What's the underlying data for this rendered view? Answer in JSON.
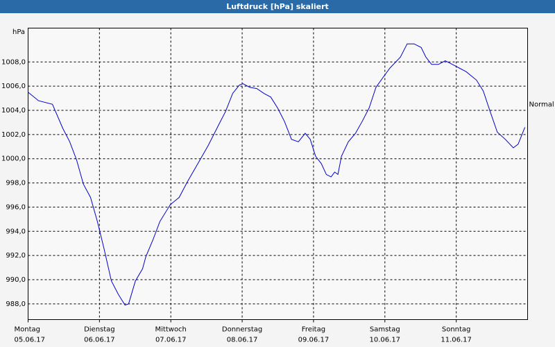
{
  "chart_data": {
    "type": "line",
    "title": "Luftdruck [hPa] skaliert",
    "y_label": "hPa",
    "x": [
      0,
      3.5,
      8.2,
      11.7,
      14,
      16.3,
      18.6,
      21,
      23.3,
      25.6,
      28,
      30.3,
      32.6,
      33.8,
      36.1,
      38.5,
      39.6,
      42,
      44.3,
      47.8,
      50.8,
      53.6,
      57.1,
      60.6,
      64.1,
      66.4,
      68.8,
      71.1,
      72.3,
      74.6,
      76.9,
      79.3,
      81.6,
      83.9,
      86.2,
      88.6,
      90.9,
      93.2,
      94.9,
      96.7,
      98.6,
      100.3,
      101.9,
      103.1,
      104.2,
      105.4,
      107.7,
      110.1,
      112.4,
      114.7,
      117,
      119.3,
      121.7,
      125.2,
      127.5,
      129.8,
      132.2,
      133.8,
      135.7,
      138,
      140.3,
      142.7,
      145,
      147.3,
      150.8,
      153.1,
      155.4,
      157.8,
      160.5,
      163.2,
      164.8,
      167.1
    ],
    "series": [
      {
        "name": "Luftdruck",
        "color": "#0000cc",
        "values": [
          1005.5,
          1004.8,
          1004.5,
          1002.5,
          1001.4,
          999.9,
          997.9,
          996.8,
          994.8,
          992.5,
          989.9,
          988.8,
          987.9,
          988.0,
          989.9,
          990.9,
          991.9,
          993.3,
          994.8,
          996.2,
          996.8,
          998.1,
          999.6,
          1001.1,
          1002.8,
          1003.9,
          1005.4,
          1006.1,
          1006.2,
          1005.9,
          1005.8,
          1005.4,
          1005.1,
          1004.2,
          1003.1,
          1001.6,
          1001.4,
          1002.1,
          1001.6,
          1000.2,
          999.6,
          998.7,
          998.5,
          998.9,
          998.7,
          1000.2,
          1001.4,
          1002.1,
          1003.1,
          1004.2,
          1005.9,
          1006.7,
          1007.5,
          1008.4,
          1009.5,
          1009.5,
          1009.2,
          1008.4,
          1007.8,
          1007.8,
          1008.1,
          1007.8,
          1007.5,
          1007.2,
          1006.5,
          1005.6,
          1003.9,
          1002.2,
          1001.6,
          1000.9,
          1001.2,
          1002.6
        ]
      }
    ],
    "xlim": [
      0,
      168
    ],
    "xticks": [
      {
        "value": 0,
        "label": "Montag"
      },
      {
        "value": 24,
        "label": "Dienstag"
      },
      {
        "value": 48,
        "label": "Mittwoch"
      },
      {
        "value": 72,
        "label": "Donnerstag"
      },
      {
        "value": 96,
        "label": "Freitag"
      },
      {
        "value": 120,
        "label": "Samstag"
      },
      {
        "value": 144,
        "label": "Sonntag"
      }
    ],
    "xtick_dates": [
      "05.06.17",
      "06.06.17",
      "07.06.17",
      "08.06.17",
      "09.06.17",
      "10.06.17",
      "11.06.17"
    ],
    "ylim": [
      986.7,
      1010.8
    ],
    "yticks": [
      {
        "value": 988,
        "label": "988,0"
      },
      {
        "value": 990,
        "label": "990,0"
      },
      {
        "value": 992,
        "label": "992,0"
      },
      {
        "value": 994,
        "label": "994,0"
      },
      {
        "value": 996,
        "label": "996,0"
      },
      {
        "value": 998,
        "label": "998,0"
      },
      {
        "value": 1000,
        "label": "1000,0"
      },
      {
        "value": 1002,
        "label": "1002,0"
      },
      {
        "value": 1004,
        "label": "1004,0"
      },
      {
        "value": 1006,
        "label": "1006,0"
      },
      {
        "value": 1008,
        "label": "1008,0"
      }
    ],
    "annotation": {
      "text": "Normal",
      "value": 1004.5
    },
    "grid": true
  }
}
